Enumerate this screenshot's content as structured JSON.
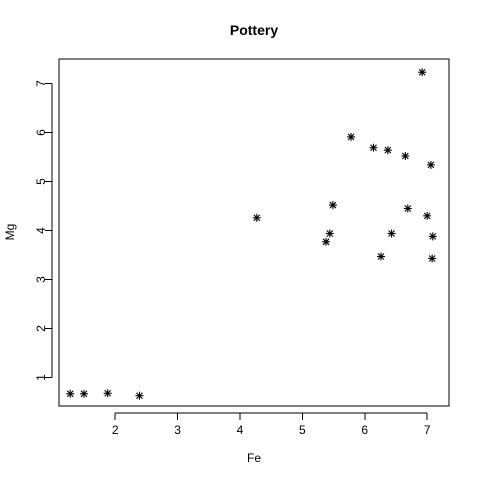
{
  "chart_data": {
    "type": "scatter",
    "title": "Pottery",
    "xlabel": "Fe",
    "ylabel": "Mg",
    "xlim": [
      1.1,
      7.35
    ],
    "ylim": [
      0.42,
      7.5
    ],
    "xticks": [
      2,
      3,
      4,
      5,
      6,
      7
    ],
    "yticks": [
      1,
      2,
      3,
      4,
      5,
      6,
      7
    ],
    "grid": false,
    "marker": "asterisk",
    "colors": {
      "points": "#000000",
      "axes": "#000000",
      "background": "#ffffff"
    },
    "points": [
      {
        "x": 1.28,
        "y": 0.67
      },
      {
        "x": 1.5,
        "y": 0.67
      },
      {
        "x": 1.88,
        "y": 0.68
      },
      {
        "x": 2.39,
        "y": 0.63
      },
      {
        "x": 4.27,
        "y": 4.26
      },
      {
        "x": 5.38,
        "y": 3.77
      },
      {
        "x": 5.44,
        "y": 3.94
      },
      {
        "x": 5.49,
        "y": 4.52
      },
      {
        "x": 5.78,
        "y": 5.91
      },
      {
        "x": 6.14,
        "y": 5.69
      },
      {
        "x": 6.26,
        "y": 3.47
      },
      {
        "x": 6.37,
        "y": 5.64
      },
      {
        "x": 6.43,
        "y": 3.94
      },
      {
        "x": 6.65,
        "y": 5.52
      },
      {
        "x": 6.69,
        "y": 4.45
      },
      {
        "x": 6.92,
        "y": 7.23
      },
      {
        "x": 7.0,
        "y": 4.3
      },
      {
        "x": 7.06,
        "y": 5.34
      },
      {
        "x": 7.08,
        "y": 3.43
      },
      {
        "x": 7.09,
        "y": 3.88
      }
    ]
  }
}
